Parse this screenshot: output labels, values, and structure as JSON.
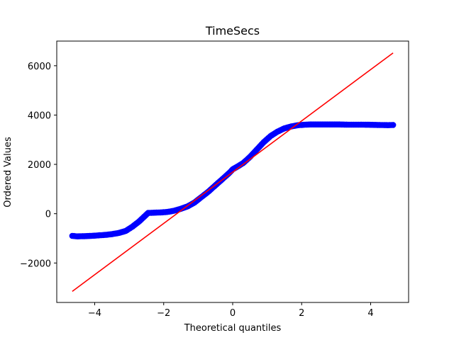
{
  "chart_data": {
    "type": "scatter",
    "title": "TimeSecs",
    "xlabel": "Theoretical quantiles",
    "ylabel": "Ordered Values",
    "xlim": [
      -5.1,
      5.1
    ],
    "ylim": [
      -3600,
      7000
    ],
    "xticks": [
      -4,
      -2,
      0,
      2,
      4
    ],
    "xtick_labels": [
      "−4",
      "−2",
      "0",
      "2",
      "4"
    ],
    "yticks": [
      -2000,
      0,
      2000,
      4000,
      6000
    ],
    "ytick_labels": [
      "−2000",
      "0",
      "2000",
      "4000",
      "6000"
    ],
    "grid": false,
    "legend": "none",
    "series": [
      {
        "kind": "points",
        "color": "#0000ff",
        "x": [
          -4.65,
          -4.5,
          -4.3,
          -4.1,
          -3.9,
          -3.7,
          -3.5,
          -3.3,
          -3.1,
          -2.9,
          -2.7,
          -2.55,
          -2.45,
          -2.3,
          -2.1,
          -1.9,
          -1.7,
          -1.5,
          -1.3,
          -1.1,
          -0.9,
          -0.7,
          -0.5,
          -0.3,
          -0.1,
          0.0,
          0.1,
          0.3,
          0.5,
          0.7,
          0.9,
          1.1,
          1.3,
          1.5,
          1.7,
          1.9,
          2.1,
          2.3,
          2.6,
          3.0,
          3.4,
          3.8,
          4.2,
          4.5,
          4.65
        ],
        "y": [
          -900,
          -920,
          -910,
          -900,
          -880,
          -860,
          -830,
          -780,
          -700,
          -520,
          -300,
          -100,
          30,
          40,
          50,
          70,
          120,
          200,
          300,
          460,
          680,
          900,
          1150,
          1400,
          1650,
          1800,
          1880,
          2050,
          2300,
          2600,
          2900,
          3150,
          3330,
          3460,
          3540,
          3590,
          3610,
          3620,
          3620,
          3620,
          3610,
          3610,
          3600,
          3590,
          3600
        ]
      },
      {
        "kind": "line",
        "color": "#ff0000",
        "x": [
          -4.65,
          4.65
        ],
        "y": [
          -3150,
          6520
        ]
      }
    ]
  }
}
